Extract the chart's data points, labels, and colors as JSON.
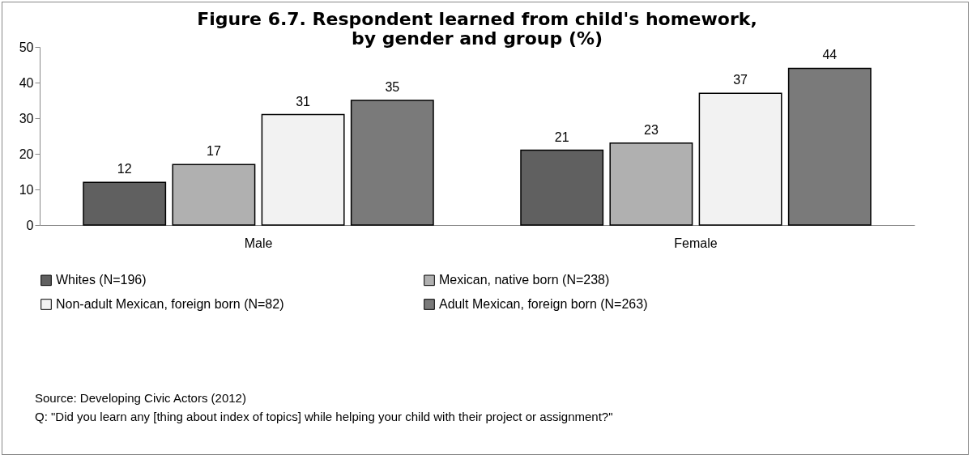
{
  "chart_data": {
    "type": "bar",
    "title": "Figure 6.7. Respondent learned from child's homework, by gender and group (%)",
    "categories": [
      "Male",
      "Female"
    ],
    "series": [
      {
        "name": "Whites (N=196)",
        "color": "#606060",
        "values": [
          12,
          21
        ]
      },
      {
        "name": "Mexican, native born (N=238)",
        "color": "#b0b0b0",
        "values": [
          17,
          23
        ]
      },
      {
        "name": "Non-adult Mexican, foreign born (N=82)",
        "color": "#f2f2f2",
        "values": [
          31,
          37
        ]
      },
      {
        "name": "Adult Mexican, foreign born (N=263)",
        "color": "#7a7a7a",
        "values": [
          35,
          44
        ]
      }
    ],
    "ylim": [
      0,
      50
    ],
    "yticks": [
      0,
      10,
      20,
      30,
      40,
      50
    ],
    "data_labels": true,
    "legend": "bottom",
    "annotations": [
      "Source: Developing Civic Actors (2012)",
      "Q: \"Did you learn any [thing about index of topics] while helping your child with their project or assignment?\""
    ]
  }
}
